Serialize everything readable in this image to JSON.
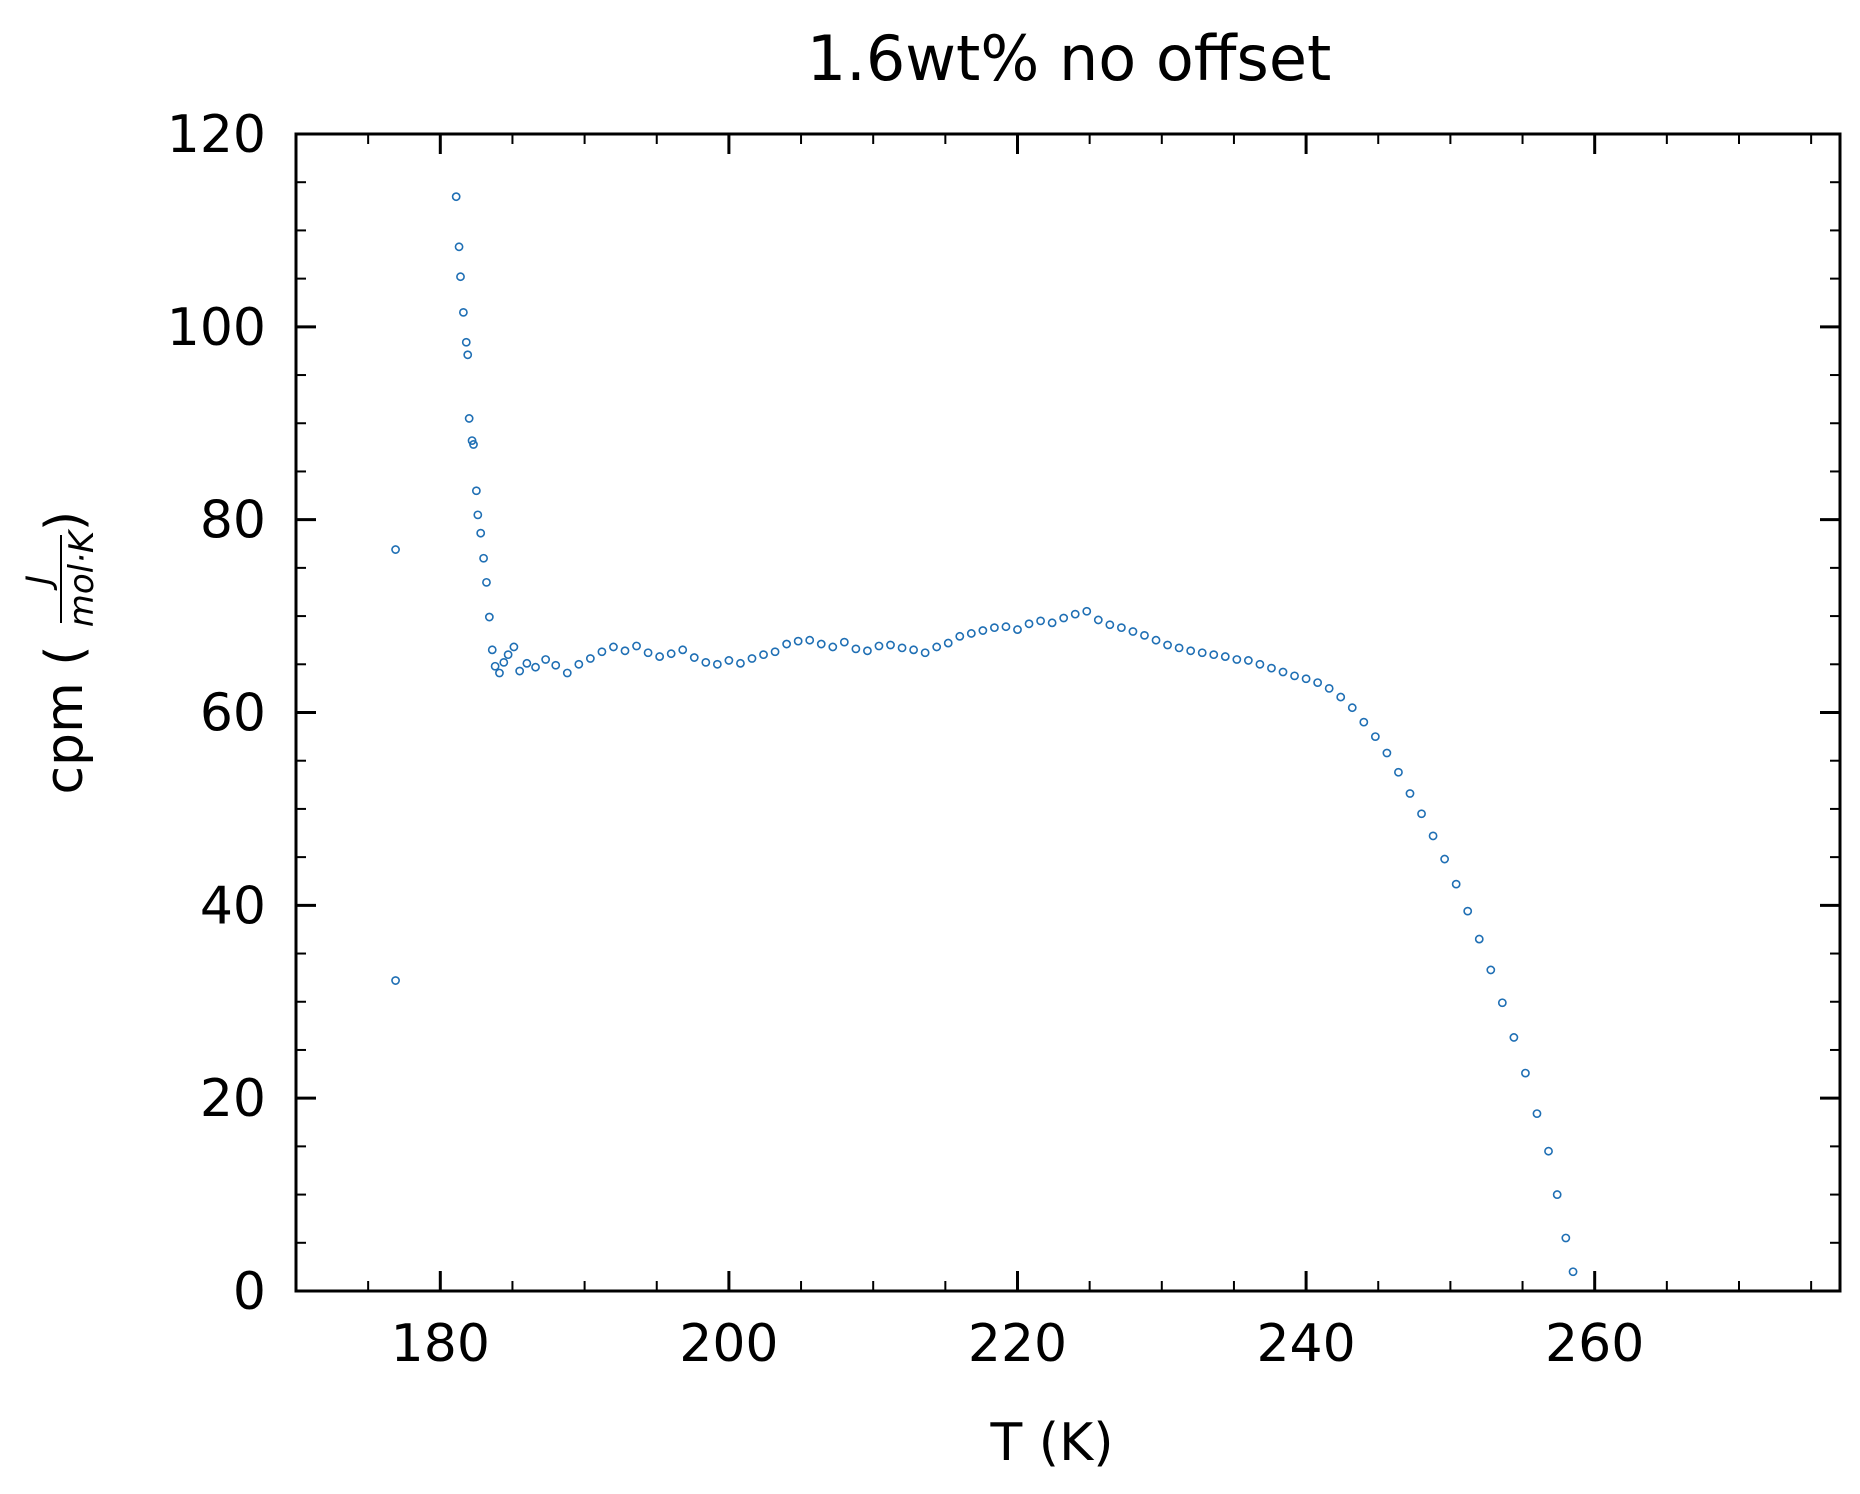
{
  "chart_data": {
    "type": "scatter",
    "title": "1.6wt% no offset",
    "xlabel": "T (K)",
    "ylabel_prefix": "cpm (",
    "ylabel_numerator": "J",
    "ylabel_denominator": "mol·K",
    "ylabel_suffix": ")",
    "xlim": [
      170,
      277
    ],
    "ylim": [
      0,
      120
    ],
    "x_ticks": [
      180,
      200,
      220,
      240,
      260
    ],
    "x_tick_labels": [
      "180",
      "200",
      "220",
      "240",
      "260"
    ],
    "y_ticks": [
      0,
      20,
      40,
      60,
      80,
      100,
      120
    ],
    "y_tick_labels": [
      "0",
      "20",
      "40",
      "60",
      "80",
      "100",
      "120"
    ],
    "x_minor_step": 5,
    "y_minor_step": 5,
    "grid": false,
    "legend": "none",
    "marker": "open-circle",
    "color": "#1f6fb4",
    "series": [
      {
        "x": [
          176.9,
          176.9,
          181.1,
          181.3,
          181.4,
          181.6,
          181.8,
          181.9,
          182.0,
          182.2,
          182.3,
          182.5,
          182.6,
          182.8,
          183.0,
          183.2,
          183.4,
          183.6,
          183.8,
          184.1,
          184.4,
          184.7,
          185.1,
          185.5,
          186.0,
          186.6,
          187.3,
          188.0,
          188.8,
          189.6,
          190.4,
          191.2,
          192.0,
          192.8,
          193.6,
          194.4,
          195.2,
          196.0,
          196.8,
          197.6,
          198.4,
          199.2,
          200.0,
          200.8,
          201.6,
          202.4,
          203.2,
          204.0,
          204.8,
          205.6,
          206.4,
          207.2,
          208.0,
          208.8,
          209.6,
          210.4,
          211.2,
          212.0,
          212.8,
          213.6,
          214.4,
          215.2,
          216.0,
          216.8,
          217.6,
          218.4,
          219.2,
          220.0,
          220.8,
          221.6,
          222.4,
          223.2,
          224.0,
          224.8,
          225.6,
          226.4,
          227.2,
          228.0,
          228.8,
          229.6,
          230.4,
          231.2,
          232.0,
          232.8,
          233.6,
          234.4,
          235.2,
          236.0,
          236.8,
          237.6,
          238.4,
          239.2,
          240.0,
          240.8,
          241.6,
          242.4,
          243.2,
          244.0,
          244.8,
          245.6,
          246.4,
          247.2,
          248.0,
          248.8,
          249.6,
          250.4,
          251.2,
          252.0,
          252.8,
          253.6,
          254.4,
          255.2,
          256.0,
          256.8,
          257.4,
          258.0,
          258.5
        ],
        "y": [
          32.2,
          76.9,
          113.5,
          108.3,
          105.2,
          101.5,
          98.4,
          97.1,
          90.5,
          88.2,
          87.8,
          83.0,
          80.5,
          78.6,
          76.0,
          73.5,
          69.9,
          66.5,
          64.8,
          64.1,
          65.2,
          66.0,
          66.8,
          64.3,
          65.1,
          64.7,
          65.5,
          64.9,
          64.1,
          65.0,
          65.6,
          66.3,
          66.8,
          66.4,
          66.9,
          66.2,
          65.8,
          66.1,
          66.5,
          65.7,
          65.2,
          65.0,
          65.4,
          65.1,
          65.6,
          66.0,
          66.3,
          67.1,
          67.4,
          67.5,
          67.1,
          66.8,
          67.3,
          66.6,
          66.4,
          66.9,
          67.0,
          66.7,
          66.5,
          66.2,
          66.8,
          67.2,
          67.9,
          68.2,
          68.5,
          68.8,
          68.9,
          68.6,
          69.2,
          69.5,
          69.3,
          69.8,
          70.2,
          70.5,
          69.6,
          69.1,
          68.8,
          68.4,
          68.0,
          67.5,
          67.0,
          66.7,
          66.4,
          66.2,
          66.0,
          65.8,
          65.5,
          65.4,
          65.0,
          64.6,
          64.2,
          63.8,
          63.5,
          63.1,
          62.5,
          61.6,
          60.5,
          59.0,
          57.5,
          55.8,
          53.8,
          51.6,
          49.5,
          47.2,
          44.8,
          42.2,
          39.4,
          36.5,
          33.3,
          29.9,
          26.3,
          22.6,
          18.4,
          14.5,
          10.0,
          5.5,
          2.0
        ]
      }
    ]
  }
}
